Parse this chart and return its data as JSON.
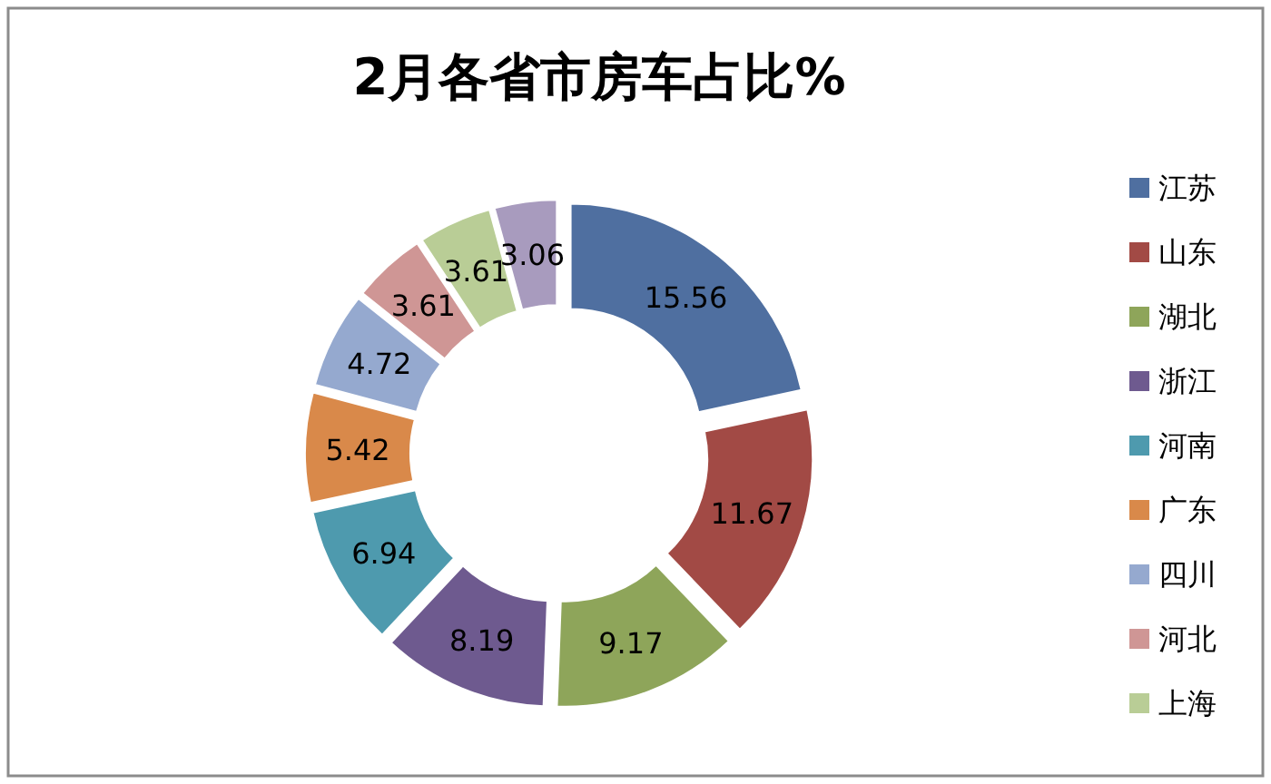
{
  "chart_data": {
    "type": "donut",
    "title": "2月各省市房车占比%",
    "categories": [
      "江苏",
      "山东",
      "湖北",
      "浙江",
      "河南",
      "广东",
      "四川",
      "河北",
      "上海",
      null
    ],
    "values": [
      15.56,
      11.67,
      9.17,
      8.19,
      6.94,
      5.42,
      4.72,
      3.61,
      3.61,
      3.06
    ],
    "colors": [
      "#4f6fa0",
      "#a24a45",
      "#8ea55a",
      "#6e5a8f",
      "#4e9aae",
      "#d9894a",
      "#95a9cf",
      "#cf9695",
      "#b9cd96",
      "#a89bbe"
    ],
    "data_labels": true,
    "legend": "right"
  }
}
